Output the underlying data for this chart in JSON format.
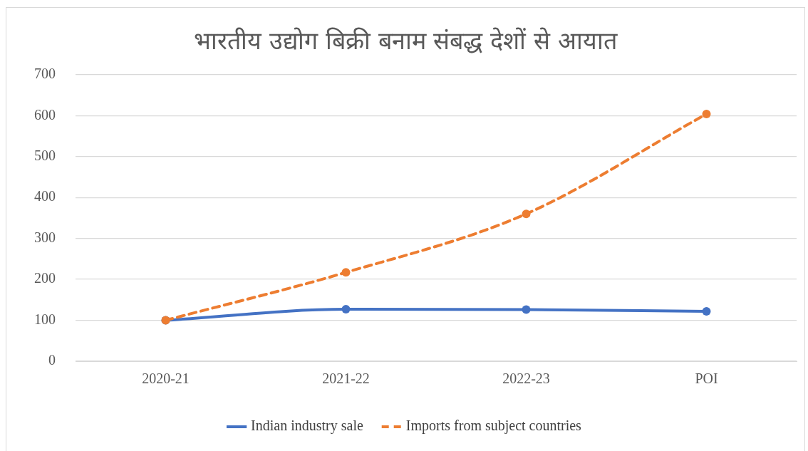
{
  "chart_data": {
    "type": "line",
    "title": "भारतीय उद्योग बिक्री बनाम संबद्ध देशों से आयात",
    "categories": [
      "2020-21",
      "2021-22",
      "2022-23",
      "POI"
    ],
    "series": [
      {
        "name": "Indian industry sale",
        "color": "#4472c4",
        "values": [
          100,
          127,
          126,
          122
        ],
        "line_style": "solid"
      },
      {
        "name": "Imports from subject countries",
        "color": "#ed7d31",
        "values": [
          100,
          217,
          360,
          604
        ],
        "line_style": "dashed"
      }
    ],
    "ylim": [
      0,
      700
    ],
    "yticks": [
      0,
      100,
      200,
      300,
      400,
      500,
      600,
      700
    ],
    "grid": "y",
    "legend": "bottom",
    "marker": "circle"
  }
}
